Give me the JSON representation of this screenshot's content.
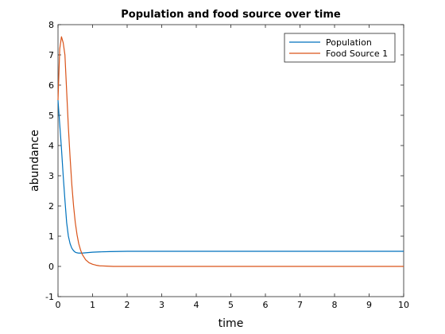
{
  "chart_data": {
    "type": "line",
    "title": "Population and food source over time",
    "xlabel": "time",
    "ylabel": "abundance",
    "xlim": [
      0,
      10
    ],
    "ylim": [
      -1,
      8
    ],
    "xticks": [
      0,
      1,
      2,
      3,
      4,
      5,
      6,
      7,
      8,
      9,
      10
    ],
    "yticks": [
      -1,
      0,
      1,
      2,
      3,
      4,
      5,
      6,
      7,
      8
    ],
    "grid": false,
    "legend": "top-right",
    "series": [
      {
        "name": "Population",
        "color": "#0072bd",
        "x": [
          0,
          0.05,
          0.1,
          0.15,
          0.2,
          0.25,
          0.3,
          0.35,
          0.4,
          0.45,
          0.5,
          0.55,
          0.6,
          0.7,
          0.8,
          0.9,
          1.0,
          1.2,
          1.5,
          2.0,
          3.0,
          4.0,
          5.0,
          6.0,
          7.0,
          8.0,
          9.0,
          10.0
        ],
        "y": [
          5.5,
          4.7,
          3.9,
          3.0,
          2.2,
          1.45,
          1.0,
          0.75,
          0.6,
          0.52,
          0.47,
          0.45,
          0.44,
          0.44,
          0.45,
          0.46,
          0.47,
          0.48,
          0.49,
          0.5,
          0.5,
          0.5,
          0.5,
          0.5,
          0.5,
          0.5,
          0.5,
          0.5
        ]
      },
      {
        "name": "Food Source 1",
        "color": "#d95319",
        "x": [
          0,
          0.05,
          0.1,
          0.15,
          0.2,
          0.25,
          0.3,
          0.35,
          0.4,
          0.45,
          0.5,
          0.55,
          0.6,
          0.65,
          0.7,
          0.8,
          0.9,
          1.0,
          1.1,
          1.2,
          1.4,
          1.6,
          1.8,
          2.0,
          3.0,
          4.0,
          5.0,
          6.0,
          7.0,
          8.0,
          9.0,
          10.0
        ],
        "y": [
          5.5,
          7.2,
          7.6,
          7.4,
          7.0,
          5.8,
          4.6,
          3.6,
          2.7,
          2.0,
          1.45,
          1.05,
          0.75,
          0.55,
          0.4,
          0.22,
          0.12,
          0.07,
          0.04,
          0.02,
          0.01,
          0.0,
          0.0,
          0.0,
          0.0,
          0.0,
          0.0,
          0.0,
          0.0,
          0.0,
          0.0,
          0.0
        ]
      }
    ]
  }
}
